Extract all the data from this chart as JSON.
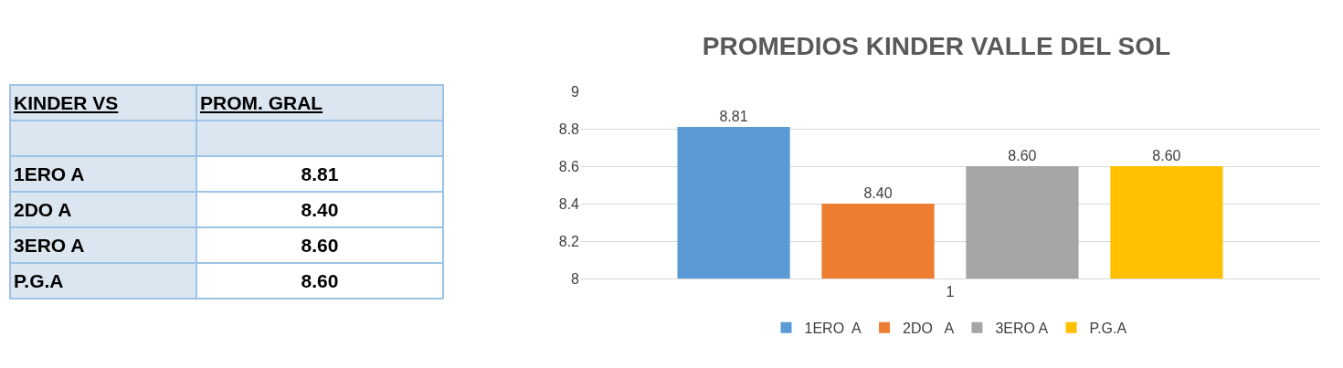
{
  "chart_data": [
    {
      "type": "other",
      "xlabel": "KINDER VS",
      "ylabel": "PROM. GRAL",
      "categories": [
        "1ERO  A",
        "2DO   A",
        "3ERO A",
        "P.G.A"
      ],
      "value_labels": [
        "8.81",
        "8.40",
        "8.60",
        "8.60"
      ]
    },
    {
      "type": "bar",
      "title": "PROMEDIOS KINDER VALLE DEL SOL",
      "categories": [
        "1"
      ],
      "series": [
        {
          "name": "1ERO  A",
          "color": "#5b9bd5",
          "values": [
            8.81
          ],
          "value_labels": [
            "8.81"
          ]
        },
        {
          "name": "2DO   A",
          "color": "#ed7d31",
          "values": [
            8.4
          ],
          "value_labels": [
            "8.40"
          ]
        },
        {
          "name": "3ERO A",
          "color": "#a5a5a5",
          "values": [
            8.6
          ],
          "value_labels": [
            "8.60"
          ]
        },
        {
          "name": "P.G.A",
          "color": "#ffc000",
          "values": [
            8.6
          ],
          "value_labels": [
            "8.60"
          ]
        }
      ],
      "ylim": [
        8,
        9
      ],
      "yticks": [
        8,
        8.2,
        8.4,
        8.6,
        8.8,
        9
      ],
      "grid": "y",
      "legend": "bottom"
    }
  ]
}
